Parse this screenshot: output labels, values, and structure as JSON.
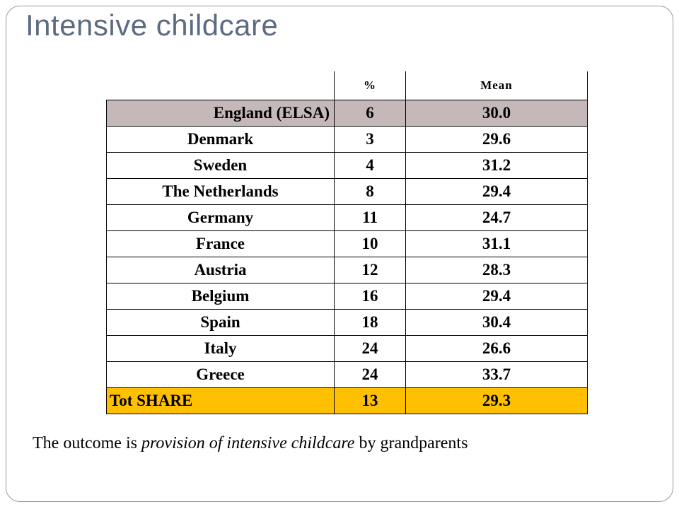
{
  "slide": {
    "title": "Intensive childcare"
  },
  "table": {
    "headers": [
      "",
      "%",
      "Mean"
    ],
    "rows": [
      {
        "country": "England (ELSA)",
        "pct": "6",
        "mean": "30.0"
      },
      {
        "country": "Denmark",
        "pct": "3",
        "mean": "29.6"
      },
      {
        "country": "Sweden",
        "pct": "4",
        "mean": "31.2"
      },
      {
        "country": "The Netherlands",
        "pct": "8",
        "mean": "29.4"
      },
      {
        "country": "Germany",
        "pct": "11",
        "mean": "24.7"
      },
      {
        "country": "France",
        "pct": "10",
        "mean": "31.1"
      },
      {
        "country": "Austria",
        "pct": "12",
        "mean": "28.3"
      },
      {
        "country": "Belgium",
        "pct": "16",
        "mean": "29.4"
      },
      {
        "country": "Spain",
        "pct": "18",
        "mean": "30.4"
      },
      {
        "country": "Italy",
        "pct": "24",
        "mean": "26.6"
      },
      {
        "country": "Greece",
        "pct": "24",
        "mean": "33.7"
      },
      {
        "country": "Tot SHARE",
        "pct": "13",
        "mean": "29.3"
      }
    ],
    "colors": {
      "england_highlight": "#c5b8b8",
      "total_highlight": "#ffc000"
    }
  },
  "footnote": {
    "prefix": "The outcome is ",
    "emphasis": "provision of intensive childcare",
    "suffix": " by grandparents"
  }
}
